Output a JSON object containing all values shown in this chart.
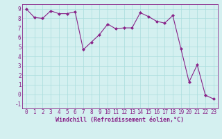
{
  "x": [
    0,
    1,
    2,
    3,
    4,
    5,
    6,
    7,
    8,
    9,
    10,
    11,
    12,
    13,
    14,
    15,
    16,
    17,
    18,
    19,
    20,
    21,
    22,
    23
  ],
  "y": [
    9.0,
    8.1,
    8.0,
    8.8,
    8.5,
    8.5,
    8.7,
    4.7,
    5.5,
    6.3,
    7.4,
    6.9,
    7.0,
    7.0,
    8.6,
    8.2,
    7.7,
    7.5,
    8.3,
    4.8,
    1.3,
    3.1,
    -0.1,
    -0.5
  ],
  "line_color": "#882288",
  "marker_color": "#882288",
  "bg_color": "#d4f0f0",
  "grid_color": "#aadddd",
  "xlabel": "Windchill (Refroidissement éolien,°C)",
  "ylim": [
    -1.5,
    9.5
  ],
  "xlim": [
    -0.5,
    23.5
  ],
  "yticks": [
    -1,
    0,
    1,
    2,
    3,
    4,
    5,
    6,
    7,
    8,
    9
  ],
  "xticks": [
    0,
    1,
    2,
    3,
    4,
    5,
    6,
    7,
    8,
    9,
    10,
    11,
    12,
    13,
    14,
    15,
    16,
    17,
    18,
    19,
    20,
    21,
    22,
    23
  ],
  "font_color": "#882288",
  "tick_fontsize": 5.5,
  "xlabel_fontsize": 6.0
}
